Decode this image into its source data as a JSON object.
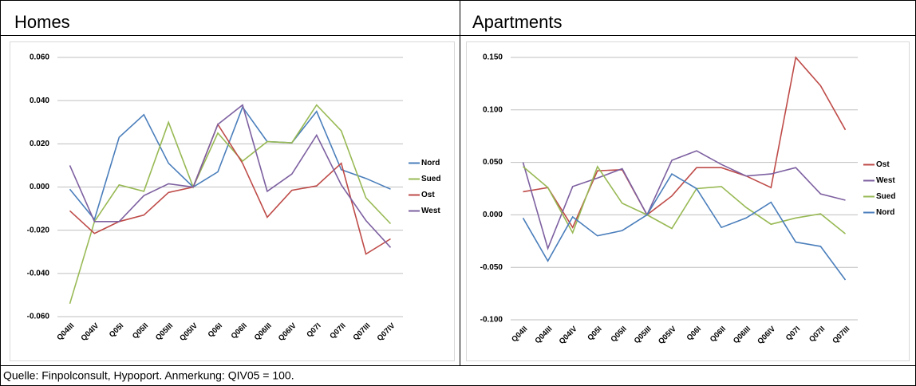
{
  "chart_data": [
    {
      "type": "line",
      "title": "Homes",
      "categories": [
        "Q04III",
        "Q04IV",
        "Q05I",
        "Q05II",
        "Q05III",
        "Q05IV",
        "Q06I",
        "Q06II",
        "Q06III",
        "Q06IV",
        "Q07I",
        "Q07II",
        "Q07III",
        "Q07IV"
      ],
      "series": [
        {
          "name": "Nord",
          "color": "#4a7ebb",
          "values": [
            -0.001,
            -0.015,
            0.023,
            0.0335,
            0.011,
            0.0,
            0.007,
            0.037,
            0.021,
            0.0205,
            0.035,
            0.008,
            0.004,
            -0.001
          ]
        },
        {
          "name": "Sued",
          "color": "#98b954",
          "values": [
            -0.054,
            -0.016,
            0.001,
            -0.002,
            0.03,
            0.0,
            0.025,
            0.012,
            0.021,
            0.0205,
            0.038,
            0.026,
            -0.005,
            -0.017
          ]
        },
        {
          "name": "Ost",
          "color": "#be4b48",
          "values": [
            -0.011,
            -0.0215,
            -0.016,
            -0.013,
            -0.0025,
            0.0,
            0.029,
            0.011,
            -0.014,
            -0.0015,
            0.0005,
            0.011,
            -0.031,
            -0.024
          ]
        },
        {
          "name": "West",
          "color": "#7d60a0",
          "values": [
            0.01,
            -0.016,
            -0.016,
            -0.004,
            0.0015,
            0.0,
            0.029,
            0.038,
            -0.002,
            0.006,
            0.024,
            0.001,
            -0.0155,
            -0.028
          ]
        }
      ],
      "ylim": [
        -0.06,
        0.06
      ],
      "yticks": [
        {
          "value": -0.06,
          "label": "-0.060"
        },
        {
          "value": -0.04,
          "label": "-0.040"
        },
        {
          "value": -0.02,
          "label": "-0.020"
        },
        {
          "value": 0,
          "label": "0.000"
        },
        {
          "value": 0.02,
          "label": "0.020"
        },
        {
          "value": 0.04,
          "label": "0.040"
        },
        {
          "value": 0.06,
          "label": "0.060"
        }
      ],
      "grid": true,
      "legend": "right"
    },
    {
      "type": "line",
      "title": "Apartments",
      "categories": [
        "Q04II",
        "Q04III",
        "Q04IV",
        "Q05I",
        "Q05II",
        "Q05III",
        "Q05IV",
        "Q06I",
        "Q06II",
        "Q06III",
        "Q06IV",
        "Q07I",
        "Q07II",
        "Q07III"
      ],
      "series": [
        {
          "name": "Ost",
          "color": "#be4b48",
          "values": [
            0.022,
            0.026,
            -0.012,
            0.042,
            0.043,
            0.0,
            0.018,
            0.045,
            0.045,
            0.037,
            0.026,
            0.15,
            0.123,
            0.081
          ]
        },
        {
          "name": "West",
          "color": "#7d60a0",
          "values": [
            0.05,
            -0.032,
            0.027,
            0.035,
            0.044,
            0.0,
            0.052,
            0.061,
            0.048,
            0.037,
            0.039,
            0.045,
            0.02,
            0.014
          ]
        },
        {
          "name": "Sued",
          "color": "#98b954",
          "values": [
            0.046,
            0.026,
            -0.017,
            0.046,
            0.011,
            0.0,
            -0.013,
            0.025,
            0.027,
            0.007,
            -0.009,
            -0.003,
            0.001,
            -0.018
          ]
        },
        {
          "name": "Nord",
          "color": "#4a7ebb",
          "values": [
            -0.003,
            -0.044,
            -0.002,
            -0.02,
            -0.015,
            0.0,
            0.039,
            0.025,
            -0.012,
            -0.003,
            0.012,
            -0.026,
            -0.03,
            -0.062
          ]
        }
      ],
      "ylim": [
        -0.1,
        0.15
      ],
      "yticks": [
        {
          "value": -0.1,
          "label": "-0.100"
        },
        {
          "value": -0.05,
          "label": "-0.050"
        },
        {
          "value": 0,
          "label": "0.000"
        },
        {
          "value": 0.05,
          "label": "0.050"
        },
        {
          "value": 0.1,
          "label": "0.100"
        },
        {
          "value": 0.15,
          "label": "0.150"
        }
      ],
      "grid": true,
      "legend": "right"
    }
  ],
  "caption": "Quelle: Finpolconsult, Hypoport. Anmerkung: QIV05 = 100."
}
